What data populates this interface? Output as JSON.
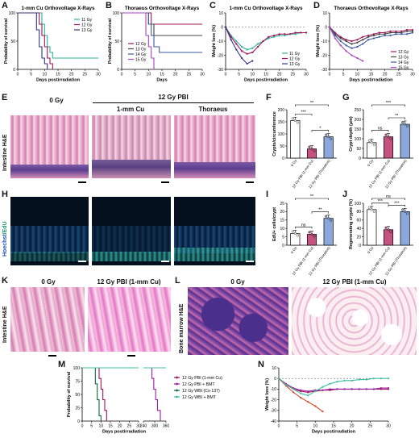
{
  "panel_letters": {
    "A": "A",
    "B": "B",
    "C": "C",
    "D": "D",
    "E": "E",
    "F": "F",
    "G": "G",
    "H": "H",
    "I": "I",
    "J": "J",
    "K": "K",
    "L": "L",
    "M": "M",
    "N": "N"
  },
  "headers": {
    "e_0gy": "0 Gy",
    "e_12gy": "12 Gy PBI",
    "e_cu": "1-mm Cu",
    "e_thor": "Thoraeus",
    "k_0gy": "0 Gy",
    "k_12gy": "12 Gy PBI (1-mm Cu)",
    "l_0gy": "0 Gy",
    "l_12gy": "12 Gy PBI (1-mm Cu)"
  },
  "side_labels": {
    "e": "Intestine H&E",
    "h_hoechst": "Hoechst",
    "h_edu": "/EdU",
    "k": "Intestine H&E",
    "l": "Bone marrow H&E"
  },
  "chart_data": [
    {
      "id": "A",
      "type": "line",
      "title": "1-mm Cu Orthovoltage X-Rays",
      "xlabel": "Days postirradiation",
      "ylabel": "Probability of survival",
      "xlim": [
        0,
        30
      ],
      "ylim": [
        0,
        100
      ],
      "xticks": [
        "0",
        "5",
        "10",
        "15",
        "20",
        "25",
        "30"
      ],
      "yticks": [
        "0",
        "50",
        "100"
      ],
      "legend_position": "top-right",
      "series": [
        {
          "name": "11 Gy",
          "color": "#2bb39a",
          "x": [
            0,
            8,
            9,
            10,
            11,
            12,
            13,
            30
          ],
          "y": [
            100,
            100,
            80,
            60,
            40,
            30,
            20,
            20
          ]
        },
        {
          "name": "12 Gy",
          "color": "#a0145a",
          "x": [
            0,
            7,
            8,
            9,
            10,
            11,
            12,
            13
          ],
          "y": [
            100,
            100,
            80,
            60,
            40,
            20,
            10,
            0
          ]
        },
        {
          "name": "13 Gy",
          "color": "#33338a",
          "x": [
            0,
            6,
            7,
            8,
            9,
            10,
            11
          ],
          "y": [
            100,
            100,
            70,
            40,
            20,
            10,
            0
          ]
        }
      ]
    },
    {
      "id": "B",
      "type": "line",
      "title": "Thoraeus Orthovoltage X-Rays",
      "xlabel": "Days",
      "ylabel": "Probability of survival",
      "xlim": [
        0,
        30
      ],
      "ylim": [
        0,
        100
      ],
      "xticks": [
        "0",
        "5",
        "10",
        "15",
        "20",
        "25",
        "30"
      ],
      "yticks": [
        "0",
        "50",
        "100"
      ],
      "legend_position": "bottom-left",
      "series": [
        {
          "name": "12 Gy",
          "color": "#a0145a",
          "x": [
            0,
            10,
            11,
            30
          ],
          "y": [
            100,
            100,
            80,
            80
          ]
        },
        {
          "name": "13 Gy",
          "color": "#444444",
          "x": [
            0,
            9,
            10,
            12,
            30
          ],
          "y": [
            100,
            100,
            80,
            60,
            60
          ]
        },
        {
          "name": "14 Gy",
          "color": "#3a5aa0",
          "x": [
            0,
            9,
            10,
            11,
            12,
            14,
            30
          ],
          "y": [
            100,
            100,
            80,
            60,
            40,
            30,
            30
          ]
        },
        {
          "name": "15 Gy",
          "color": "#a845c0",
          "x": [
            0,
            8,
            9,
            10,
            11,
            12
          ],
          "y": [
            100,
            100,
            60,
            40,
            20,
            0
          ]
        }
      ]
    },
    {
      "id": "C",
      "type": "line",
      "title": "1-mm Cu Orthovoltage X-Rays",
      "xlabel": "Days postirradiation",
      "ylabel": "Weight loss (%)",
      "xlim": [
        0,
        30
      ],
      "ylim": [
        -30,
        10
      ],
      "xticks": [
        "0",
        "5",
        "10",
        "15",
        "20",
        "25",
        "30"
      ],
      "yticks": [
        "10",
        "0",
        "-10",
        "-20",
        "-30"
      ],
      "legend_position": "bottom-right",
      "series": [
        {
          "name": "11 Gy",
          "color": "#2bb39a",
          "x": [
            0,
            2,
            4,
            6,
            8,
            10,
            12,
            14,
            16,
            18,
            20,
            22,
            24,
            26,
            28,
            30
          ],
          "y": [
            0,
            -6,
            -10,
            -14,
            -16,
            -15,
            -12,
            -10,
            -8,
            -7,
            -6,
            -6,
            -5,
            -5,
            -4,
            -4
          ]
        },
        {
          "name": "12 Gy",
          "color": "#a0145a",
          "x": [
            0,
            2,
            4,
            6,
            8,
            10,
            12,
            14,
            16,
            18,
            20,
            22,
            24,
            26,
            28,
            30
          ],
          "y": [
            0,
            -7,
            -12,
            -17,
            -19,
            -18,
            -14,
            -10,
            -7,
            -6,
            -5,
            -5,
            -5,
            -4,
            -4,
            -4
          ]
        },
        {
          "name": "13 Gy",
          "color": "#33338a",
          "x": [
            0,
            2,
            4,
            6,
            8,
            10
          ],
          "y": [
            0,
            -9,
            -16,
            -22,
            -26,
            -24
          ]
        }
      ]
    },
    {
      "id": "D",
      "type": "line",
      "title": "Thoraeus Orthovoltage X-Rays",
      "xlabel": "Days postirradiation",
      "ylabel": "Weight loss (%)",
      "xlim": [
        0,
        30
      ],
      "ylim": [
        -30,
        10
      ],
      "xticks": [
        "0",
        "5",
        "10",
        "15",
        "20",
        "25",
        "30"
      ],
      "yticks": [
        "10",
        "0",
        "-10",
        "-20",
        "-30"
      ],
      "legend_position": "bottom-right",
      "series": [
        {
          "name": "12 Gy",
          "color": "#a0145a",
          "x": [
            0,
            2,
            4,
            6,
            8,
            10,
            12,
            14,
            16,
            18,
            20,
            22,
            24,
            26,
            28,
            30
          ],
          "y": [
            0,
            -4,
            -7,
            -9,
            -10,
            -9,
            -7,
            -6,
            -5,
            -4,
            -4,
            -3,
            -3,
            -3,
            -2,
            -2
          ]
        },
        {
          "name": "13 Gy",
          "color": "#444444",
          "x": [
            0,
            2,
            4,
            6,
            8,
            10,
            12,
            14,
            16,
            18,
            20,
            22,
            24,
            26,
            28,
            30
          ],
          "y": [
            0,
            -5,
            -8,
            -10,
            -12,
            -11,
            -9,
            -7,
            -6,
            -5,
            -5,
            -4,
            -4,
            -4,
            -3,
            -3
          ]
        },
        {
          "name": "14 Gy",
          "color": "#3a5aa0",
          "x": [
            0,
            2,
            4,
            6,
            8,
            10,
            12,
            14,
            16,
            18,
            20,
            22,
            24,
            26,
            28,
            30
          ],
          "y": [
            0,
            -6,
            -10,
            -13,
            -15,
            -14,
            -12,
            -9,
            -8,
            -7,
            -6,
            -6,
            -5,
            -5,
            -5,
            -4
          ]
        },
        {
          "name": "15 Gy",
          "color": "#a845c0",
          "x": [
            0,
            2,
            4,
            6,
            8,
            10,
            12
          ],
          "y": [
            0,
            -8,
            -13,
            -17,
            -20,
            -22,
            -24
          ]
        }
      ]
    },
    {
      "id": "F",
      "type": "bar",
      "ylabel": "Crypts/circumference",
      "categories": [
        "0 Gy",
        "12 Gy PBI (1-mm Cu)",
        "12 Gy PBI (Thoraeus)"
      ],
      "values": [
        155,
        38,
        88
      ],
      "colors": [
        "#ffffff",
        "#c5537f",
        "#8aa8dc"
      ],
      "ylim": [
        0,
        200
      ],
      "yticks": [
        "0",
        "50",
        "100",
        "150",
        "200"
      ],
      "significance": [
        {
          "pair": [
            0,
            1
          ],
          "label": "***",
          "level": 1
        },
        {
          "pair": [
            1,
            2
          ],
          "label": "*",
          "level": 1
        },
        {
          "pair": [
            0,
            2
          ],
          "label": "**",
          "level": 2
        }
      ]
    },
    {
      "id": "G",
      "type": "bar",
      "ylabel": "Crypt depth (μm)",
      "categories": [
        "0 Gy",
        "12 Gy PBI (1-mm Cu)",
        "12 Gy PBI (Thoraeus)"
      ],
      "values": [
        80,
        110,
        175
      ],
      "colors": [
        "#ffffff",
        "#c5537f",
        "#8aa8dc"
      ],
      "ylim": [
        0,
        250
      ],
      "yticks": [
        "0",
        "50",
        "100",
        "150",
        "200",
        "250"
      ],
      "significance": [
        {
          "pair": [
            0,
            1
          ],
          "label": "ns",
          "level": 1
        },
        {
          "pair": [
            1,
            2
          ],
          "label": "**",
          "level": 1
        },
        {
          "pair": [
            0,
            2
          ],
          "label": "***",
          "level": 2
        }
      ]
    },
    {
      "id": "I",
      "type": "bar",
      "ylabel": "EdU+ cells/crypt",
      "categories": [
        "0 Gy",
        "12 Gy PBI (1-mm Cu)",
        "12 Gy PBI (Thoraeus)"
      ],
      "values": [
        7,
        6.5,
        16
      ],
      "colors": [
        "#ffffff",
        "#c5537f",
        "#8aa8dc"
      ],
      "ylim": [
        0,
        25
      ],
      "yticks": [
        "0",
        "5",
        "10",
        "15",
        "20",
        "25"
      ],
      "significance": [
        {
          "pair": [
            0,
            1
          ],
          "label": "ns",
          "level": 1
        },
        {
          "pair": [
            1,
            2
          ],
          "label": "**",
          "level": 1
        },
        {
          "pair": [
            0,
            2
          ],
          "label": "**",
          "level": 2
        }
      ]
    },
    {
      "id": "J",
      "type": "bar",
      "ylabel": "Regenerating crypts (%)",
      "categories": [
        "0 Gy",
        "12 Gy PBI (1-mm Cu)",
        "12 Gy PBI (Thoraeus)"
      ],
      "values": [
        85,
        37,
        80
      ],
      "colors": [
        "#ffffff",
        "#c5537f",
        "#8aa8dc"
      ],
      "ylim": [
        0,
        100
      ],
      "yticks": [
        "0",
        "20",
        "40",
        "60",
        "80",
        "100"
      ],
      "significance": [
        {
          "pair": [
            0,
            1
          ],
          "label": "***",
          "level": 1
        },
        {
          "pair": [
            1,
            2
          ],
          "label": "***",
          "level": 1
        },
        {
          "pair": [
            0,
            2
          ],
          "label": "ns",
          "level": 2
        }
      ]
    },
    {
      "id": "M",
      "type": "line",
      "xlabel": "Days postirradiation",
      "ylabel": "Probability of survival",
      "ylim": [
        0,
        100
      ],
      "yticks": [
        "0",
        "25",
        "50",
        "75",
        "100"
      ],
      "xticks_left": [
        "0",
        "5",
        "10",
        "15",
        "20",
        "25",
        "30"
      ],
      "xticks_right": [
        "240",
        "300",
        "360"
      ],
      "legend_position": "right",
      "series": [
        {
          "name": "12 Gy PBI (1-mm Cu)",
          "color": "#a0145a",
          "x": [
            0,
            8,
            9,
            10,
            11,
            12,
            13
          ],
          "y": [
            100,
            100,
            80,
            60,
            40,
            20,
            0
          ]
        },
        {
          "name": "12 Gy PBI + BMT",
          "color": "#9b1fa0",
          "x": [
            0,
            30,
            270,
            285,
            295,
            305,
            315,
            330
          ],
          "y": [
            100,
            100,
            100,
            80,
            60,
            40,
            20,
            0
          ]
        },
        {
          "name": "12 Gy WBI (Cs-137)",
          "color": "#0b6b3a",
          "x": [
            0,
            6,
            7,
            8,
            9,
            10
          ],
          "y": [
            100,
            100,
            70,
            40,
            10,
            0
          ]
        },
        {
          "name": "12 Gy WBI + BMT",
          "color": "#3fbfa0",
          "x": [
            0,
            30,
            240,
            360
          ],
          "y": [
            100,
            100,
            100,
            100
          ]
        }
      ]
    },
    {
      "id": "N",
      "type": "line",
      "xlabel": "Days postirradiation",
      "ylabel": "Weight loss (%)",
      "xlim": [
        0,
        30
      ],
      "ylim": [
        -40,
        10
      ],
      "xticks": [
        "0",
        "5",
        "10",
        "15",
        "20",
        "25",
        "30"
      ],
      "yticks": [
        "10",
        "0",
        "-10",
        "-20",
        "-30",
        "-40"
      ],
      "series": [
        {
          "name": "12 Gy PBI (1-mm Cu)",
          "color": "#a0145a",
          "x": [
            0,
            2,
            4,
            6,
            8,
            10,
            12,
            14,
            16,
            18,
            20,
            22,
            24,
            26,
            28,
            30
          ],
          "y": [
            0,
            -6,
            -10,
            -12,
            -13,
            -12,
            -11,
            -11,
            -10,
            -10,
            -10,
            -10,
            -10,
            -10,
            -10,
            -10
          ]
        },
        {
          "name": "12 Gy PBI + BMT",
          "color": "#9b1fa0",
          "x": [
            0,
            2,
            4,
            6,
            8,
            10,
            12,
            14,
            16,
            18,
            20,
            22,
            24,
            26,
            28,
            30
          ],
          "y": [
            0,
            -5,
            -9,
            -11,
            -12,
            -11,
            -11,
            -10,
            -10,
            -10,
            -10,
            -10,
            -10,
            -10,
            -9,
            -9
          ]
        },
        {
          "name": "12 Gy WBI (Cs-137)",
          "color": "#d64a2a",
          "x": [
            0,
            2,
            4,
            6,
            8,
            10,
            12
          ],
          "y": [
            0,
            -7,
            -13,
            -18,
            -22,
            -26,
            -31
          ]
        },
        {
          "name": "12 Gy WBI + BMT",
          "color": "#3fbfa0",
          "x": [
            0,
            2,
            4,
            6,
            8,
            10,
            12,
            14,
            16,
            18,
            20,
            22,
            24,
            26,
            28,
            30
          ],
          "y": [
            0,
            -6,
            -10,
            -14,
            -16,
            -12,
            -8,
            -5,
            -3,
            -2,
            -2,
            -1,
            -1,
            0,
            0,
            0
          ]
        }
      ]
    }
  ]
}
